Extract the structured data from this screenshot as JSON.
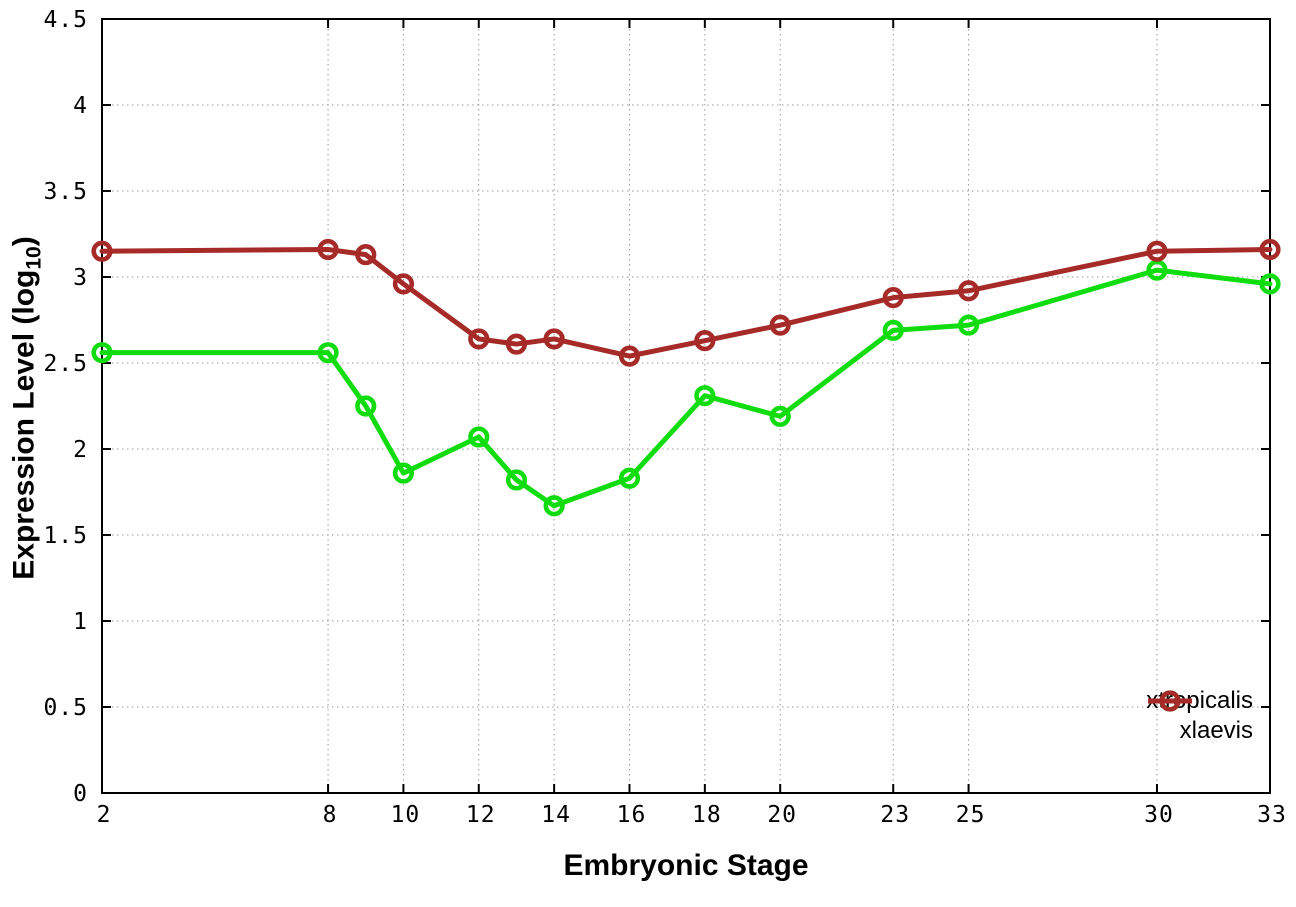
{
  "figure": {
    "xlabel": "Embryonic Stage",
    "ylabel_full": "Expression Level (log10)",
    "ylabel_prefix": "Expression Level (log",
    "ylabel_sub": "10",
    "ylabel_suffix": ")",
    "background_color": "#ffffff",
    "border_color": "#000000",
    "grid_color": "#999999"
  },
  "chart_data": {
    "type": "line",
    "title": "",
    "xlabel": "Embryonic Stage",
    "ylabel": "Expression Level (log10)",
    "x": [
      2,
      8,
      9,
      10,
      12,
      13,
      14,
      16,
      18,
      20,
      23,
      25,
      30,
      33
    ],
    "xtick_values": [
      2,
      8,
      10,
      12,
      14,
      16,
      18,
      20,
      23,
      25,
      30,
      33
    ],
    "xtick_labels": [
      "2",
      "8",
      "10",
      "12",
      "14",
      "16",
      "18",
      "20",
      "23",
      "25",
      "30",
      "33"
    ],
    "ytick_values": [
      0,
      0.5,
      1,
      1.5,
      2,
      2.5,
      3,
      3.5,
      4,
      4.5
    ],
    "ytick_labels": [
      "0",
      "0.5",
      "1",
      "1.5",
      "2",
      "2.5",
      "3",
      "3.5",
      "4",
      "4.5"
    ],
    "xlim": [
      2,
      33
    ],
    "ylim": [
      0,
      4.5
    ],
    "grid": true,
    "legend_position": "bottom-right-inside",
    "marker": "open-circle",
    "series": [
      {
        "name": "xtropicalis",
        "color": "#10dc10",
        "values": [
          2.56,
          2.56,
          2.25,
          1.86,
          2.07,
          1.82,
          1.67,
          1.83,
          2.31,
          2.19,
          2.69,
          2.72,
          3.04,
          2.96
        ]
      },
      {
        "name": "xlaevis",
        "color": "#a62b28",
        "values": [
          3.15,
          3.16,
          3.13,
          2.96,
          2.64,
          2.61,
          2.64,
          2.54,
          2.63,
          2.72,
          2.88,
          2.92,
          3.15,
          3.16
        ]
      }
    ]
  }
}
